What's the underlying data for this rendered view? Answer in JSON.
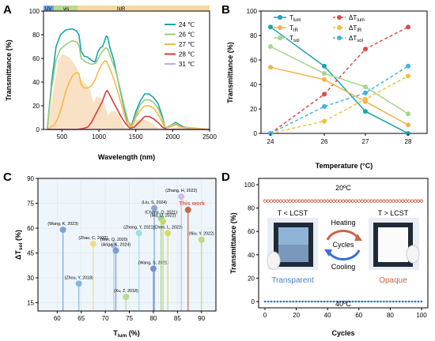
{
  "panels": {
    "A": {
      "label": "A",
      "xlabel": "Wavelength (nm)",
      "ylabel": "Transmittance (%)",
      "regions": {
        "uv": "UV",
        "vis": "vis",
        "nir": "NIR"
      }
    },
    "B": {
      "label": "B",
      "xlabel": "Temperature (°C)",
      "ylabel": "Transmittance (%)"
    },
    "C": {
      "label": "C",
      "xlabel": "T",
      "xlabel_sub": "lum",
      "xlabel_unit": " (%)",
      "ylabel": "ΔT",
      "ylabel_sub": "sol",
      "ylabel_unit": " (%)"
    },
    "D": {
      "label": "D",
      "xlabel": "Cycles",
      "ylabel": "Transmittance (%)",
      "temp_high": "20ºC",
      "temp_low": "40ºC",
      "left_title": "T < LCST",
      "right_title": "T > LCST",
      "heating": "Heating",
      "cycles_word": "Cycles",
      "cooling": "Cooling",
      "transparent": "Transparent",
      "opaque": "Opaque"
    }
  },
  "colors": {
    "teal": "#1aa3b4",
    "orange": "#f7b94a",
    "green": "#9ccd7a",
    "red": "#d93b3b",
    "violet": "#b9b0dd",
    "solar": "#f6d9b5",
    "brick": "#c9664a",
    "blue": "#3a6fd8"
  },
  "chart_data": [
    {
      "panel": "A",
      "type": "line",
      "xlabel": "Wavelength (nm)",
      "ylabel": "Transmittance (%)",
      "xlim": [
        250,
        2500
      ],
      "ylim": [
        0,
        100
      ],
      "xticks": [
        500,
        1000,
        1500,
        2000,
        2500
      ],
      "yticks": [
        0,
        20,
        40,
        60,
        80,
        100
      ],
      "legend_position": "top-right",
      "series": [
        {
          "name": "24 ℃",
          "color": "#1aa3b4",
          "points": [
            [
              300,
              0
            ],
            [
              360,
              40
            ],
            [
              420,
              70
            ],
            [
              480,
              80
            ],
            [
              550,
              84
            ],
            [
              640,
              85
            ],
            [
              700,
              83
            ],
            [
              730,
              80
            ],
            [
              760,
              66
            ],
            [
              800,
              62
            ],
            [
              850,
              61
            ],
            [
              910,
              58
            ],
            [
              950,
              57
            ],
            [
              990,
              66
            ],
            [
              1020,
              69
            ],
            [
              1050,
              70
            ],
            [
              1080,
              75
            ],
            [
              1100,
              79
            ],
            [
              1120,
              78
            ],
            [
              1150,
              69
            ],
            [
              1200,
              59
            ],
            [
              1260,
              41
            ],
            [
              1320,
              24
            ],
            [
              1380,
              8
            ],
            [
              1440,
              3
            ],
            [
              1500,
              15
            ],
            [
              1560,
              24
            ],
            [
              1620,
              30
            ],
            [
              1680,
              30
            ],
            [
              1740,
              27
            ],
            [
              1800,
              22
            ],
            [
              1860,
              11
            ],
            [
              1900,
              1
            ],
            [
              1960,
              3
            ],
            [
              2040,
              6
            ],
            [
              2120,
              3
            ],
            [
              2200,
              1
            ],
            [
              2300,
              0
            ],
            [
              2500,
              0
            ]
          ]
        },
        {
          "name": "26 ℃",
          "color": "#9ccd7a",
          "points": [
            [
              300,
              0
            ],
            [
              360,
              35
            ],
            [
              420,
              59
            ],
            [
              480,
              68
            ],
            [
              560,
              72
            ],
            [
              640,
              75
            ],
            [
              700,
              74
            ],
            [
              730,
              71
            ],
            [
              760,
              60
            ],
            [
              820,
              57
            ],
            [
              900,
              55
            ],
            [
              960,
              56
            ],
            [
              1000,
              61
            ],
            [
              1050,
              66
            ],
            [
              1090,
              69
            ],
            [
              1120,
              68
            ],
            [
              1160,
              61
            ],
            [
              1220,
              51
            ],
            [
              1280,
              37
            ],
            [
              1340,
              21
            ],
            [
              1400,
              6
            ],
            [
              1450,
              3
            ],
            [
              1510,
              13
            ],
            [
              1560,
              21
            ],
            [
              1620,
              25
            ],
            [
              1680,
              25
            ],
            [
              1740,
              23
            ],
            [
              1800,
              18
            ],
            [
              1860,
              9
            ],
            [
              1900,
              1
            ],
            [
              1960,
              3
            ],
            [
              2040,
              5
            ],
            [
              2120,
              2
            ],
            [
              2200,
              1
            ],
            [
              2500,
              0
            ]
          ]
        },
        {
          "name": "27 ℃",
          "color": "#f7b94a",
          "points": [
            [
              300,
              0
            ],
            [
              400,
              4
            ],
            [
              450,
              10
            ],
            [
              500,
              20
            ],
            [
              550,
              32
            ],
            [
              600,
              40
            ],
            [
              650,
              46
            ],
            [
              700,
              48
            ],
            [
              730,
              47
            ],
            [
              760,
              38
            ],
            [
              800,
              35
            ],
            [
              850,
              35
            ],
            [
              900,
              37
            ],
            [
              950,
              42
            ],
            [
              1000,
              50
            ],
            [
              1050,
              56
            ],
            [
              1080,
              58
            ],
            [
              1110,
              57
            ],
            [
              1150,
              51
            ],
            [
              1200,
              43
            ],
            [
              1260,
              31
            ],
            [
              1320,
              18
            ],
            [
              1380,
              5
            ],
            [
              1440,
              2
            ],
            [
              1500,
              10
            ],
            [
              1560,
              16
            ],
            [
              1620,
              20
            ],
            [
              1680,
              20
            ],
            [
              1740,
              18
            ],
            [
              1800,
              13
            ],
            [
              1860,
              6
            ],
            [
              1900,
              1
            ],
            [
              1960,
              2
            ],
            [
              2040,
              4
            ],
            [
              2120,
              2
            ],
            [
              2500,
              0
            ]
          ]
        },
        {
          "name": "28 ℃",
          "color": "#d93b3b",
          "points": [
            [
              300,
              0
            ],
            [
              600,
              0
            ],
            [
              700,
              0
            ],
            [
              800,
              1
            ],
            [
              850,
              2
            ],
            [
              900,
              6
            ],
            [
              950,
              12
            ],
            [
              1000,
              18
            ],
            [
              1050,
              24
            ],
            [
              1090,
              31
            ],
            [
              1110,
              33
            ],
            [
              1140,
              30
            ],
            [
              1180,
              25
            ],
            [
              1240,
              18
            ],
            [
              1300,
              11
            ],
            [
              1360,
              5
            ],
            [
              1420,
              1
            ],
            [
              1480,
              2
            ],
            [
              1560,
              7
            ],
            [
              1620,
              11
            ],
            [
              1680,
              11
            ],
            [
              1740,
              9
            ],
            [
              1800,
              6
            ],
            [
              1860,
              2
            ],
            [
              1920,
              0
            ],
            [
              2500,
              0
            ]
          ]
        },
        {
          "name": "31 ℃",
          "color": "#b9b0dd",
          "points": [
            [
              300,
              0
            ],
            [
              2500,
              0
            ]
          ]
        }
      ]
    },
    {
      "panel": "B",
      "type": "line",
      "xlabel": "Temperature (°C)",
      "ylabel": "Transmittance (%)",
      "categories": [
        "24",
        "26",
        "27",
        "28"
      ],
      "ylim": [
        0,
        100
      ],
      "yticks": [
        0,
        20,
        40,
        60,
        80,
        100
      ],
      "legend_position": "top",
      "series": [
        {
          "name": "T",
          "sub": "lum",
          "style": "solid",
          "marker": "circle",
          "color": "#1aa3b4",
          "values": [
            87,
            55,
            18,
            0
          ]
        },
        {
          "name": "ΔT",
          "sub": "lum",
          "style": "dashed",
          "marker": "circle",
          "color": "#e04a4a",
          "values": [
            0,
            32,
            69,
            87
          ]
        },
        {
          "name": "T",
          "sub": "IR",
          "style": "solid",
          "marker": "circle",
          "color": "#f2b24c",
          "values": [
            54,
            44,
            26,
            7
          ]
        },
        {
          "name": "ΔT",
          "sub": "IR",
          "style": "dashed",
          "marker": "circle",
          "color": "#f2c03a",
          "values": [
            0,
            10,
            28,
            47
          ]
        },
        {
          "name": "T",
          "sub": "sol",
          "style": "solid",
          "marker": "circle",
          "color": "#a6d48c",
          "values": [
            71,
            49,
            38,
            16
          ]
        },
        {
          "name": "ΔT",
          "sub": "sol",
          "style": "dashed",
          "marker": "circle",
          "color": "#42b2e6",
          "values": [
            0,
            22,
            33,
            55
          ]
        }
      ]
    },
    {
      "panel": "C",
      "type": "scatter",
      "xlabel": "T lum (%)",
      "ylabel": "ΔT sol (%)",
      "xlim": [
        56,
        93
      ],
      "ylim": [
        10,
        90
      ],
      "xticks": [
        60,
        65,
        70,
        75,
        80,
        85,
        90
      ],
      "yticks": [
        15,
        30,
        45,
        60,
        75,
        90
      ],
      "points": [
        {
          "label": "(Wang, K, 2023)",
          "x": 61.2,
          "y": 59.0,
          "color": "#7da3dc"
        },
        {
          "label": "(Zhou, Y, 2018)",
          "x": 64.5,
          "y": 26.5,
          "color": "#7fb8dd"
        },
        {
          "label": "(Zhao, C, 2022)",
          "x": 67.5,
          "y": 50.5,
          "color": "#f0dc86"
        },
        {
          "label": "(Wer, Q, 2020)",
          "x": 71.8,
          "y": 49.5,
          "color": "#b8bfe0"
        },
        {
          "label": "(Ariga, K, 2024)",
          "x": 72.2,
          "y": 46.5,
          "color": "#7f9bd4"
        },
        {
          "label": "(Xu, Z, 2018)",
          "x": 74.3,
          "y": 18.5,
          "color": "#b9d98e"
        },
        {
          "label": "(Zhong, Y, 2021)",
          "x": 77.0,
          "y": 57.0,
          "color": "#9fdde6"
        },
        {
          "label": "(Liu, S, 2024)",
          "x": 80.2,
          "y": 72.0,
          "color": "#8aa6d6"
        },
        {
          "label": "(Wang, S, 2021)",
          "x": 80.0,
          "y": 35.5,
          "color": "#7b8fcf"
        },
        {
          "label": "(Chang, Q, 2021)",
          "x": 81.6,
          "y": 66.0,
          "color": "#95d39b"
        },
        {
          "label": "(Ma, D, 2022)",
          "x": 82.0,
          "y": 64.0,
          "color": "#c6d86a"
        },
        {
          "label": "(Chen, L, 2022)",
          "x": 83.0,
          "y": 57.0,
          "color": "#d9d968"
        },
        {
          "label": "(Zhang, H, 2022)",
          "x": 85.8,
          "y": 79.0,
          "color": "#d5b7ee"
        },
        {
          "label": "This work",
          "x": 87.2,
          "y": 71.0,
          "color": "#c9664a",
          "highlight": true
        },
        {
          "label": "(Niu, Y, 2022)",
          "x": 90.0,
          "y": 53.0,
          "color": "#c4d57a"
        }
      ]
    },
    {
      "panel": "D",
      "type": "scatter",
      "xlabel": "Cycles",
      "ylabel": "Transmittance (%)",
      "xlim": [
        0,
        100
      ],
      "ylim": [
        0,
        100
      ],
      "xticks": [
        0,
        20,
        40,
        60,
        80,
        100
      ],
      "yticks": [
        0,
        20,
        40,
        60,
        80,
        100
      ],
      "series": [
        {
          "name": "20ºC",
          "marker": "circle-open",
          "color": "#c9664a",
          "x_start": 0,
          "x_end": 100,
          "y": 86
        },
        {
          "name": "40ºC",
          "marker": "circle",
          "color": "#3a6fd8",
          "x_start": 0,
          "x_end": 100,
          "y": 0
        }
      ]
    }
  ]
}
